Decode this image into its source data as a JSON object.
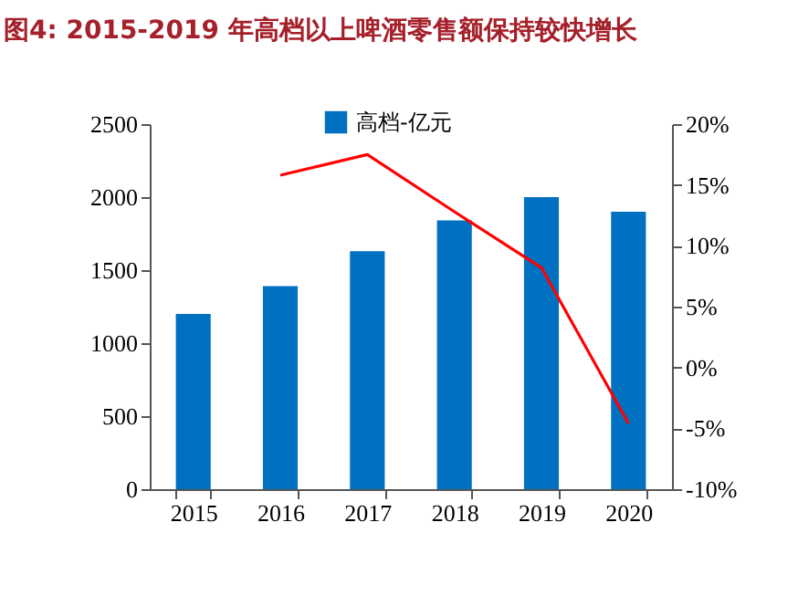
{
  "chart_data": {
    "type": "bar",
    "title": "图4: 2015-2019 年高档以上啤酒零售额保持较快增长",
    "categories": [
      "2015",
      "2016",
      "2017",
      "2018",
      "2019",
      "2020"
    ],
    "series": [
      {
        "name": "高档-亿元",
        "color": "#0070c0",
        "values": [
          1200,
          1390,
          1630,
          1840,
          2000,
          1900
        ]
      },
      {
        "type": "line",
        "axis": "y2",
        "color": "#ff0000",
        "values": [
          null,
          15.8,
          17.5,
          12.8,
          8.2,
          -4.6
        ]
      }
    ],
    "ylim": [
      0,
      2500
    ],
    "yticks": [
      0,
      500,
      1000,
      1500,
      2000,
      2500
    ],
    "y2lim": [
      -10,
      20
    ],
    "y2ticks": [
      {
        "value": -10,
        "label": "-10%"
      },
      {
        "value": -5,
        "label": "-5%"
      },
      {
        "value": 0,
        "label": "0%"
      },
      {
        "value": 5,
        "label": "5%"
      },
      {
        "value": 10,
        "label": "10%"
      },
      {
        "value": 15,
        "label": "15%"
      },
      {
        "value": 20,
        "label": "20%"
      }
    ],
    "legend": "top",
    "grid": false
  }
}
